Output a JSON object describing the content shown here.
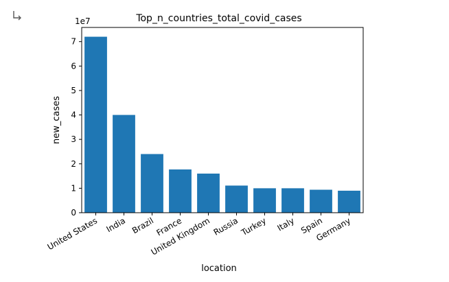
{
  "cell": {
    "output_icon": "output-redirect-icon"
  },
  "chart_data": {
    "type": "bar",
    "title": "Top_n_countries_total_covid_cases",
    "xlabel": "location",
    "ylabel": "new_cases",
    "offset_label": "1e7",
    "categories": [
      "United States",
      "India",
      "Brazil",
      "France",
      "United Kingdom",
      "Russia",
      "Turkey",
      "Italy",
      "Spain",
      "Germany"
    ],
    "values": [
      72000000,
      40000000,
      24000000,
      17700000,
      16000000,
      11100000,
      10000000,
      10000000,
      9400000,
      9000000
    ],
    "ylim": [
      0,
      75800000
    ],
    "yticks": [
      0,
      10000000,
      20000000,
      30000000,
      40000000,
      50000000,
      60000000,
      70000000
    ],
    "ytick_labels": [
      "0",
      "1",
      "2",
      "3",
      "4",
      "5",
      "6",
      "7"
    ],
    "bar_color": "#1f77b4",
    "grid": false
  }
}
